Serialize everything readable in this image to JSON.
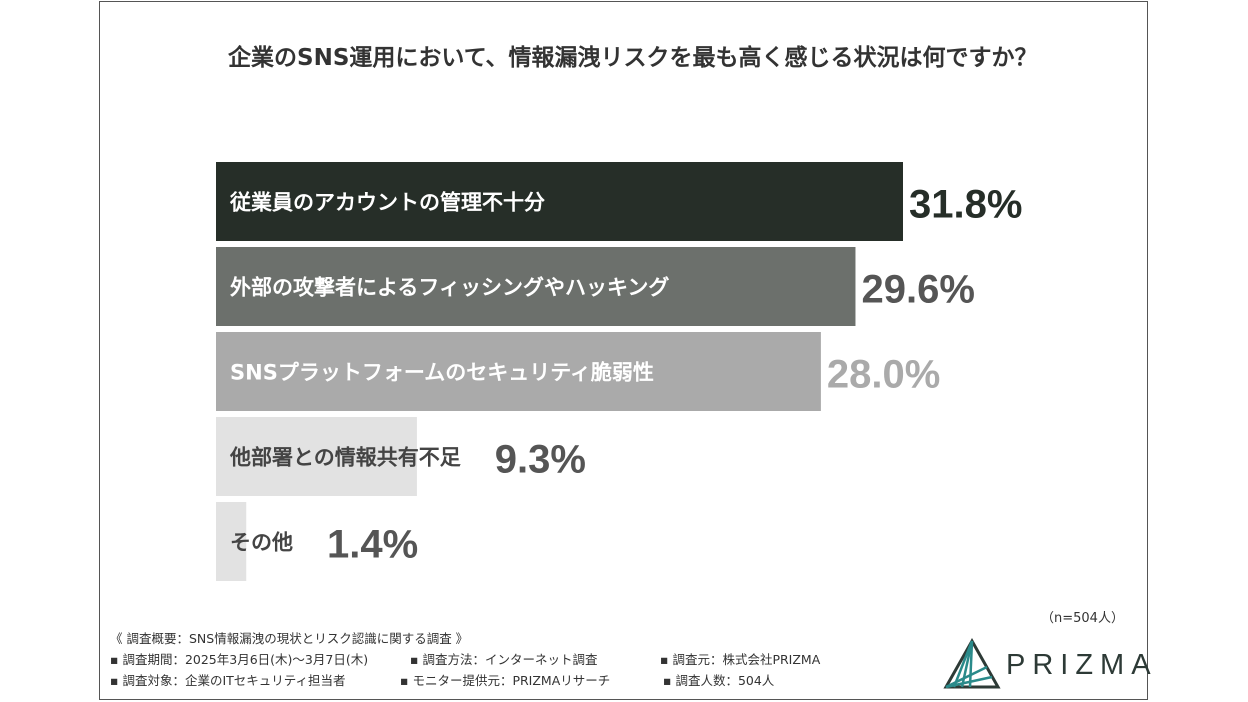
{
  "title": "企業のSNS運用において、情報漏洩リスクを最も高く感じる状況は何ですか？",
  "chart_data": {
    "type": "bar",
    "orientation": "horizontal",
    "title": "企業のSNS運用において、情報漏洩リスクを最も高く感じる状況は何ですか？",
    "categories": [
      "従業員のアカウントの管理不十分",
      "外部の攻撃者によるフィッシングやハッキング",
      "SNSプラットフォームのセキュリティ脆弱性",
      "他部署との情報共有不足",
      "その他"
    ],
    "values": [
      31.8,
      29.6,
      28.0,
      9.3,
      1.4
    ],
    "value_labels": [
      "31.8%",
      "29.6%",
      "28.0%",
      "9.3%",
      "1.4%"
    ],
    "bar_colors": [
      "#262e28",
      "#6c706c",
      "#aaaaaa",
      "#e2e2e2",
      "#e2e2e2"
    ],
    "label_colors": [
      "#ffffff",
      "#ffffff",
      "#ffffff",
      "#444444",
      "#444444"
    ],
    "value_colors": [
      "#262e28",
      "#555555",
      "#aaaaaa",
      "#555555",
      "#555555"
    ],
    "xlim": [
      0,
      31.8
    ],
    "grid": false,
    "legend": "none"
  },
  "sample_size": "（n=504人）",
  "footer": {
    "summary": "《 調査概要：SNS情報漏洩の現状とリスク認識に関する調査 》",
    "period": "▪ 調査期間：2025年3月6日(木)〜3月7日(木)",
    "method": "▪ 調査方法：インターネット調査",
    "organizer": "▪ 調査元：株式会社PRIZMA",
    "target": "▪ 調査対象：企業のITセキュリティ担当者",
    "provider": "▪ モニター提供元：PRIZMAリサーチ",
    "count": "▪ 調査人数：504人"
  },
  "logo": {
    "text": "PRIZMA",
    "color": "#2d3a36",
    "accent": "#2a8a8a"
  }
}
